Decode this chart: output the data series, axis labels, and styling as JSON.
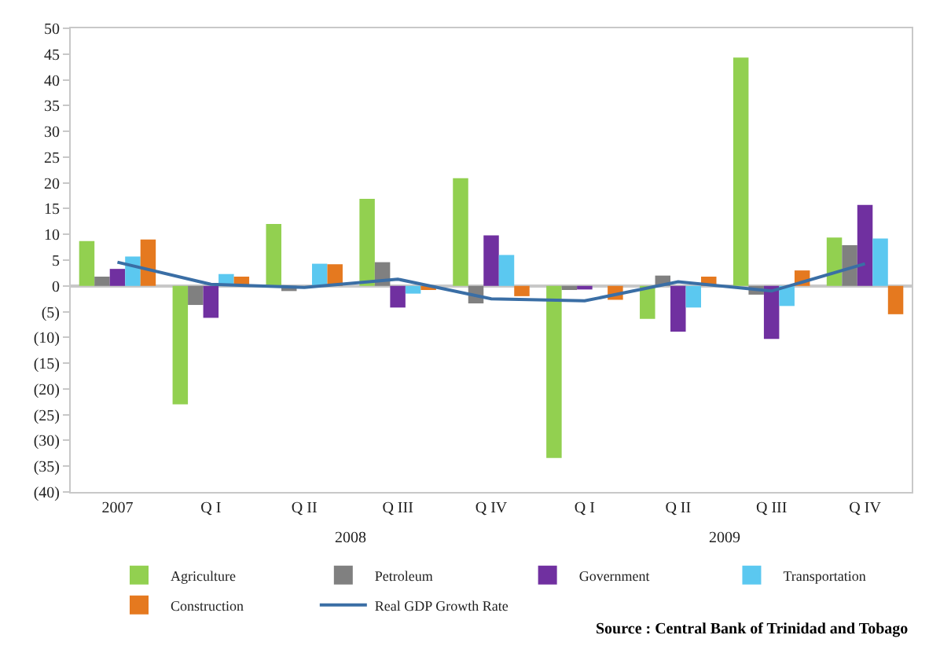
{
  "chart_data": {
    "type": "bar",
    "categories": [
      "2007",
      "Q I",
      "Q II",
      "Q III",
      "Q IV",
      "Q I",
      "Q II",
      "Q III",
      "Q IV"
    ],
    "series": [
      {
        "name": "Agriculture",
        "color": "#92d050",
        "values": [
          8.7,
          -23,
          12,
          16.9,
          20.9,
          -33.4,
          -6.4,
          44.3,
          9.4
        ]
      },
      {
        "name": "Petroleum",
        "color": "#808080",
        "values": [
          1.8,
          -3.7,
          -1.0,
          4.6,
          -3.4,
          -0.8,
          2.0,
          -1.7,
          7.9
        ]
      },
      {
        "name": "Government",
        "color": "#7030a0",
        "values": [
          3.3,
          -6.2,
          0,
          -4.2,
          9.8,
          -0.7,
          -8.9,
          -10.3,
          15.7
        ]
      },
      {
        "name": "Transportation",
        "color": "#5bc8f0",
        "values": [
          5.7,
          2.3,
          4.3,
          -1.5,
          6.0,
          0,
          -4.2,
          -3.9,
          9.2
        ]
      },
      {
        "name": "Construction",
        "color": "#e5791f",
        "values": [
          9.0,
          1.8,
          4.2,
          -0.8,
          -2.0,
          -2.7,
          1.8,
          3.0,
          -5.5
        ]
      },
      {
        "name": "Real GDP Growth Rate",
        "color": "#3a6ea5",
        "type": "line",
        "values": [
          4.6,
          0.3,
          -0.3,
          1.3,
          -2.5,
          -2.9,
          0.8,
          -1.0,
          4.3
        ]
      }
    ],
    "ylim": [
      -40,
      50
    ],
    "yticks": [
      {
        "value": -40,
        "label": "(40)"
      },
      {
        "value": -35,
        "label": "(35)"
      },
      {
        "value": -30,
        "label": "(30)"
      },
      {
        "value": -25,
        "label": "(25)"
      },
      {
        "value": -20,
        "label": "(20)"
      },
      {
        "value": -15,
        "label": "(15)"
      },
      {
        "value": -10,
        "label": "(10)"
      },
      {
        "value": -5,
        "label": "(5)"
      },
      0,
      5,
      10,
      15,
      20,
      25,
      30,
      35,
      40,
      45,
      50
    ],
    "legend": "bottom",
    "annotations": [
      "2008",
      "2009",
      "Source : Central Bank of Trinidad and Tobago"
    ]
  }
}
